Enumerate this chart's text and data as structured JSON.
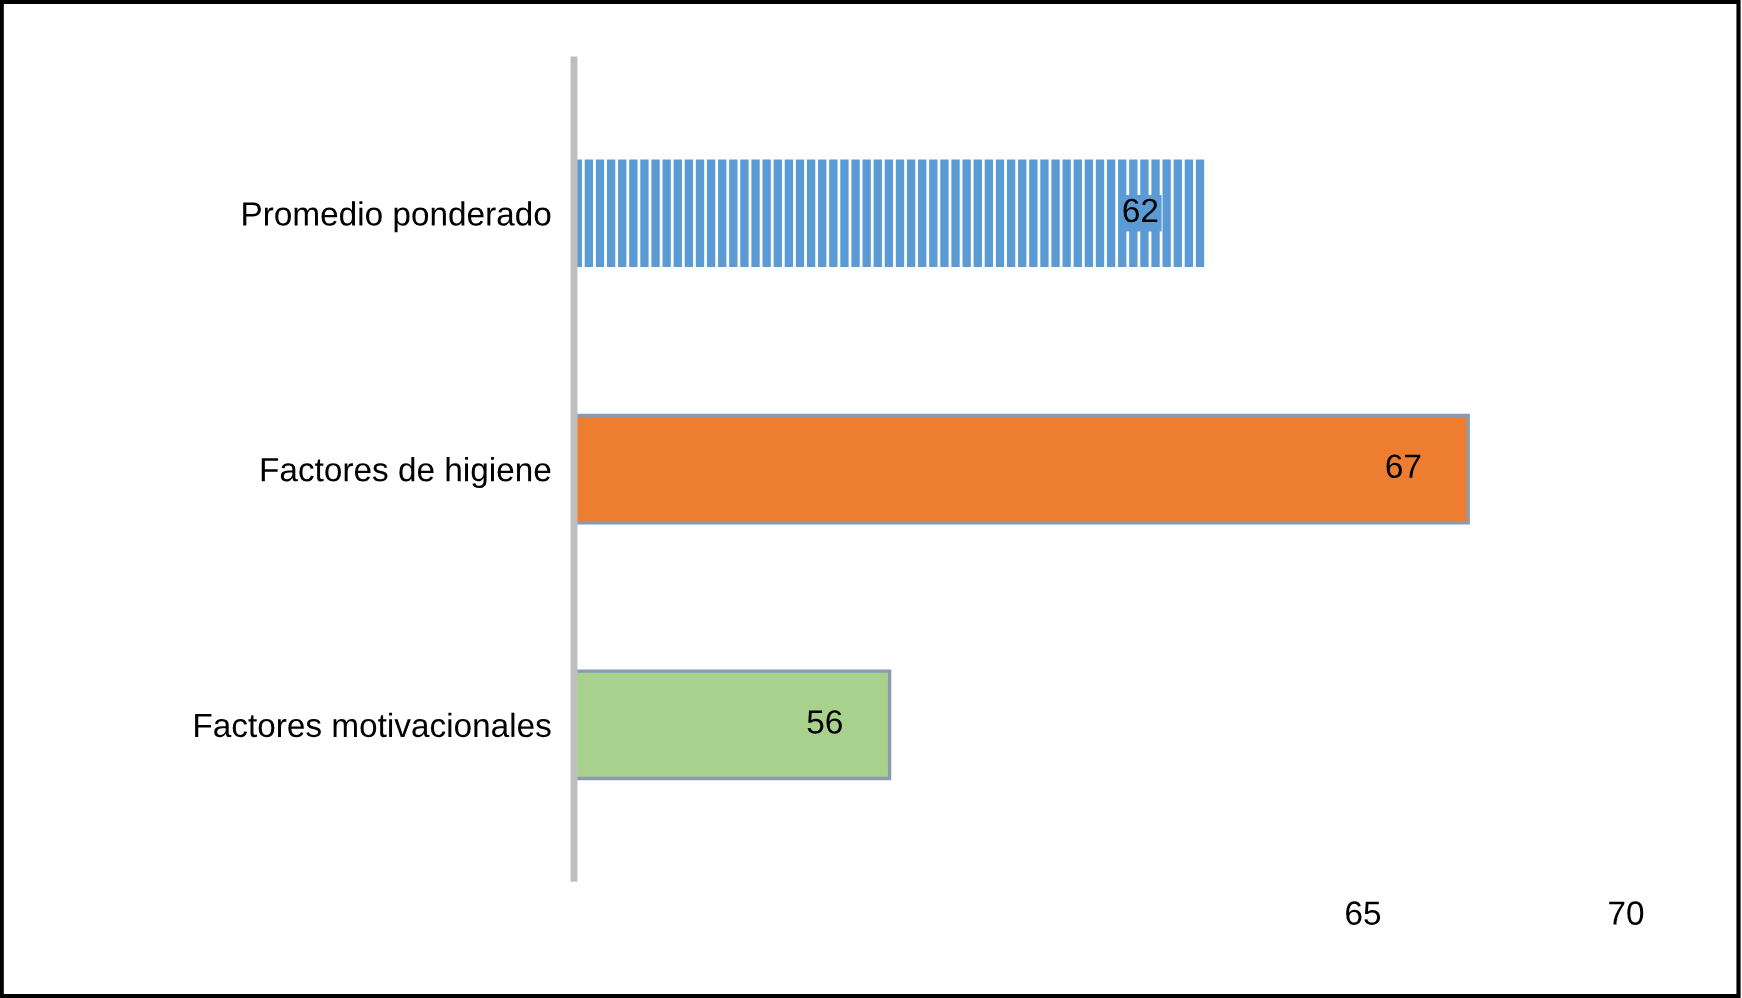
{
  "chart_data": {
    "type": "bar",
    "orientation": "horizontal",
    "categories": [
      "Promedio ponderado",
      "Factores de higiene",
      "Factores motivacionales"
    ],
    "values": [
      62,
      67,
      56
    ],
    "colors": [
      "#5b9bd5",
      "#ed7d31",
      "#a9d18e"
    ],
    "xlim": [
      50,
      70
    ],
    "xticks": [
      65,
      70
    ],
    "grid": false,
    "data_labels": true
  }
}
